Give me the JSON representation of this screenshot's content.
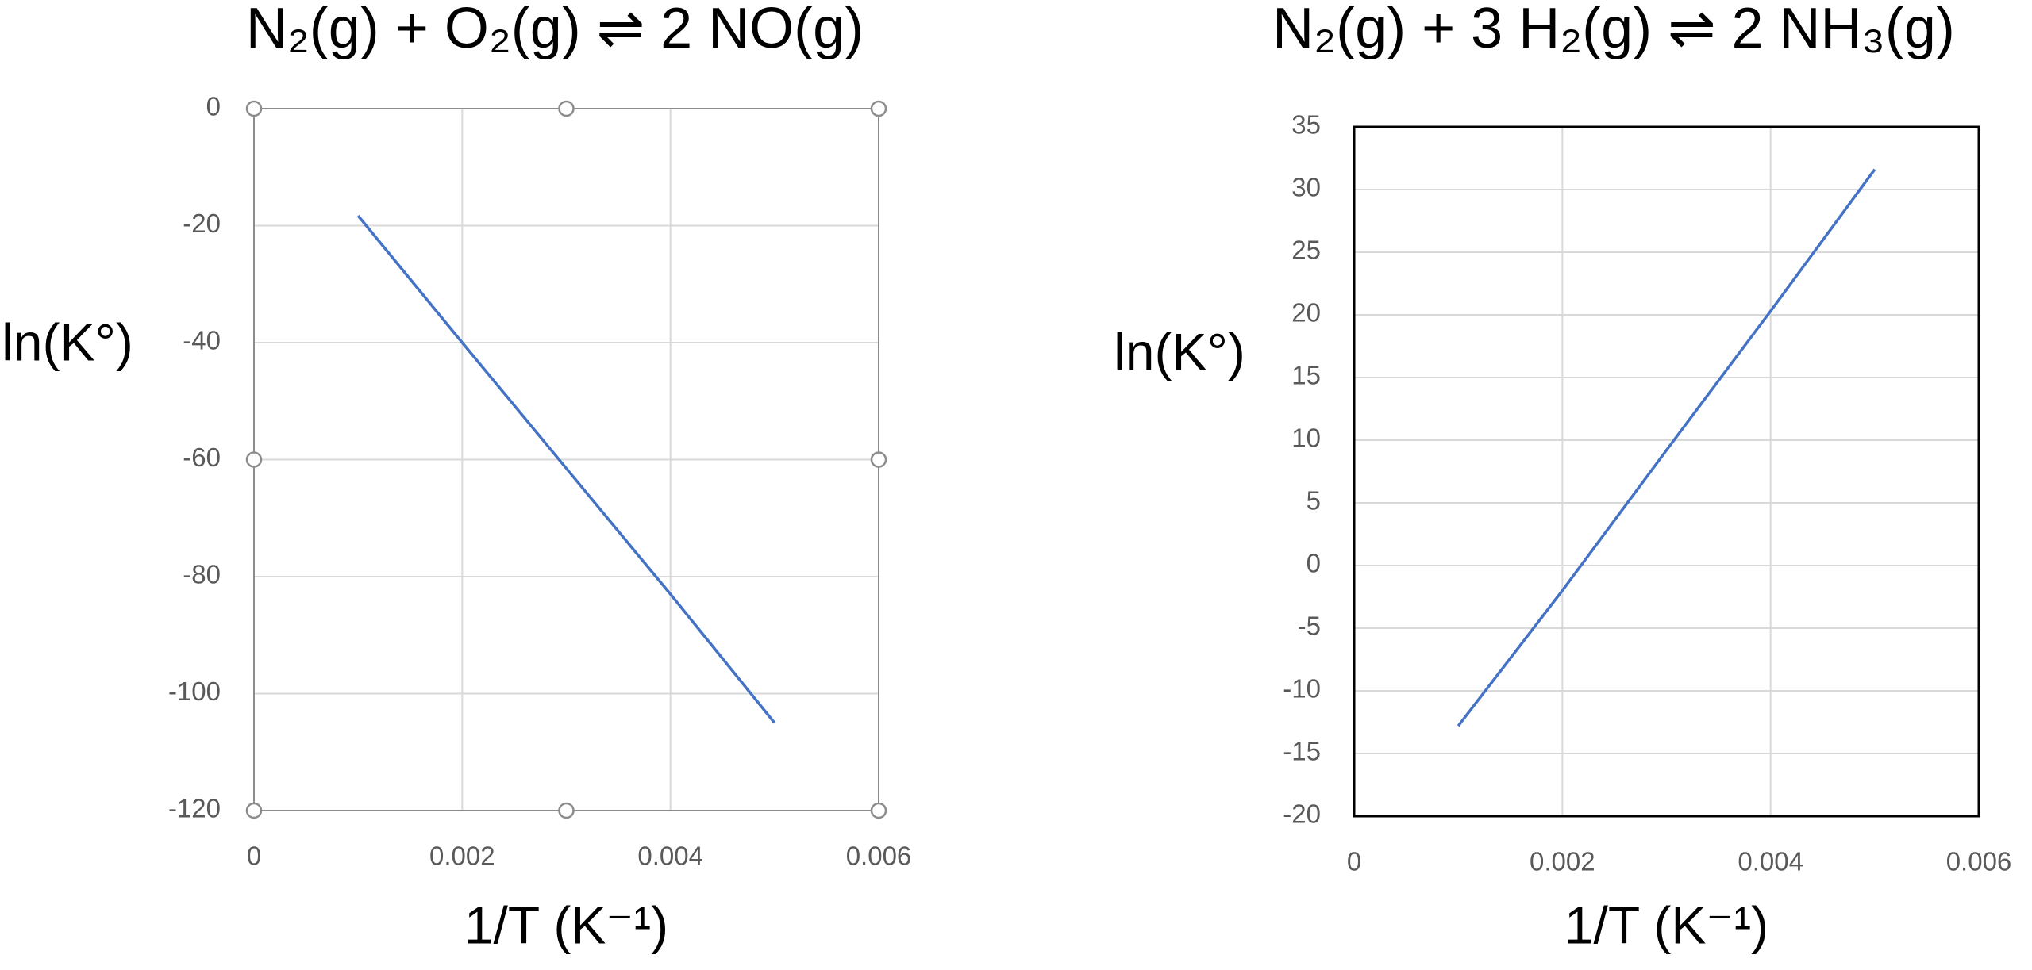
{
  "chart_data": [
    {
      "type": "line",
      "title": "N₂(g) + O₂(g) ⇌ 2 NO(g)",
      "x_label": "1/T (K⁻¹)",
      "y_label": "ln(K°)",
      "x": [
        0.001,
        0.002,
        0.003,
        0.004,
        0.005
      ],
      "series": [
        {
          "color": "#4472c4",
          "values": [
            -18.3,
            -40,
            -61.5,
            -83,
            -105
          ]
        }
      ],
      "xlim": [
        0,
        0.006
      ],
      "xticks": [
        0,
        0.002,
        0.004,
        0.006
      ],
      "ylim": [
        -120,
        0
      ],
      "yticks": [
        -120,
        -100,
        -80,
        -60,
        -40,
        -20,
        0
      ],
      "grid": true
    },
    {
      "type": "line",
      "title": "N₂(g) + 3 H₂(g) ⇌ 2 NH₃(g)",
      "x_label": "1/T (K⁻¹)",
      "y_label": "ln(K°)",
      "x": [
        0.001,
        0.002,
        0.003,
        0.004,
        0.005
      ],
      "series": [
        {
          "color": "#4472c4",
          "values": [
            -12.8,
            -2,
            9.2,
            20.3,
            31.6
          ]
        }
      ],
      "xlim": [
        0,
        0.006
      ],
      "xticks": [
        0,
        0.002,
        0.004,
        0.006
      ],
      "ylim": [
        -20,
        35
      ],
      "yticks": [
        -20,
        -15,
        -10,
        -5,
        0,
        5,
        10,
        15,
        20,
        25,
        30,
        35
      ],
      "grid": true
    }
  ]
}
